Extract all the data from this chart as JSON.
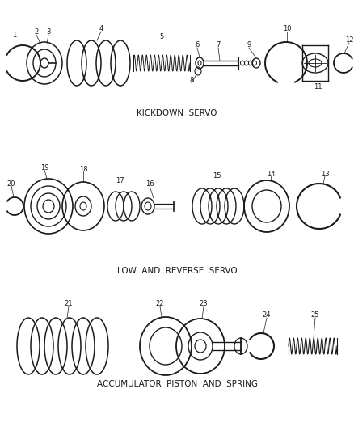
{
  "background_color": "#ffffff",
  "line_color": "#1a1a1a",
  "section_labels": {
    "kickdown": "KICKDOWN  SERVO",
    "low_reverse": "LOW  AND  REVERSE  SERVO",
    "accumulator": "ACCUMULATOR  PISTON  AND  SPRING"
  },
  "label_fontsize": 7,
  "number_fontsize": 6,
  "figsize": [
    4.38,
    5.33
  ],
  "dpi": 100
}
